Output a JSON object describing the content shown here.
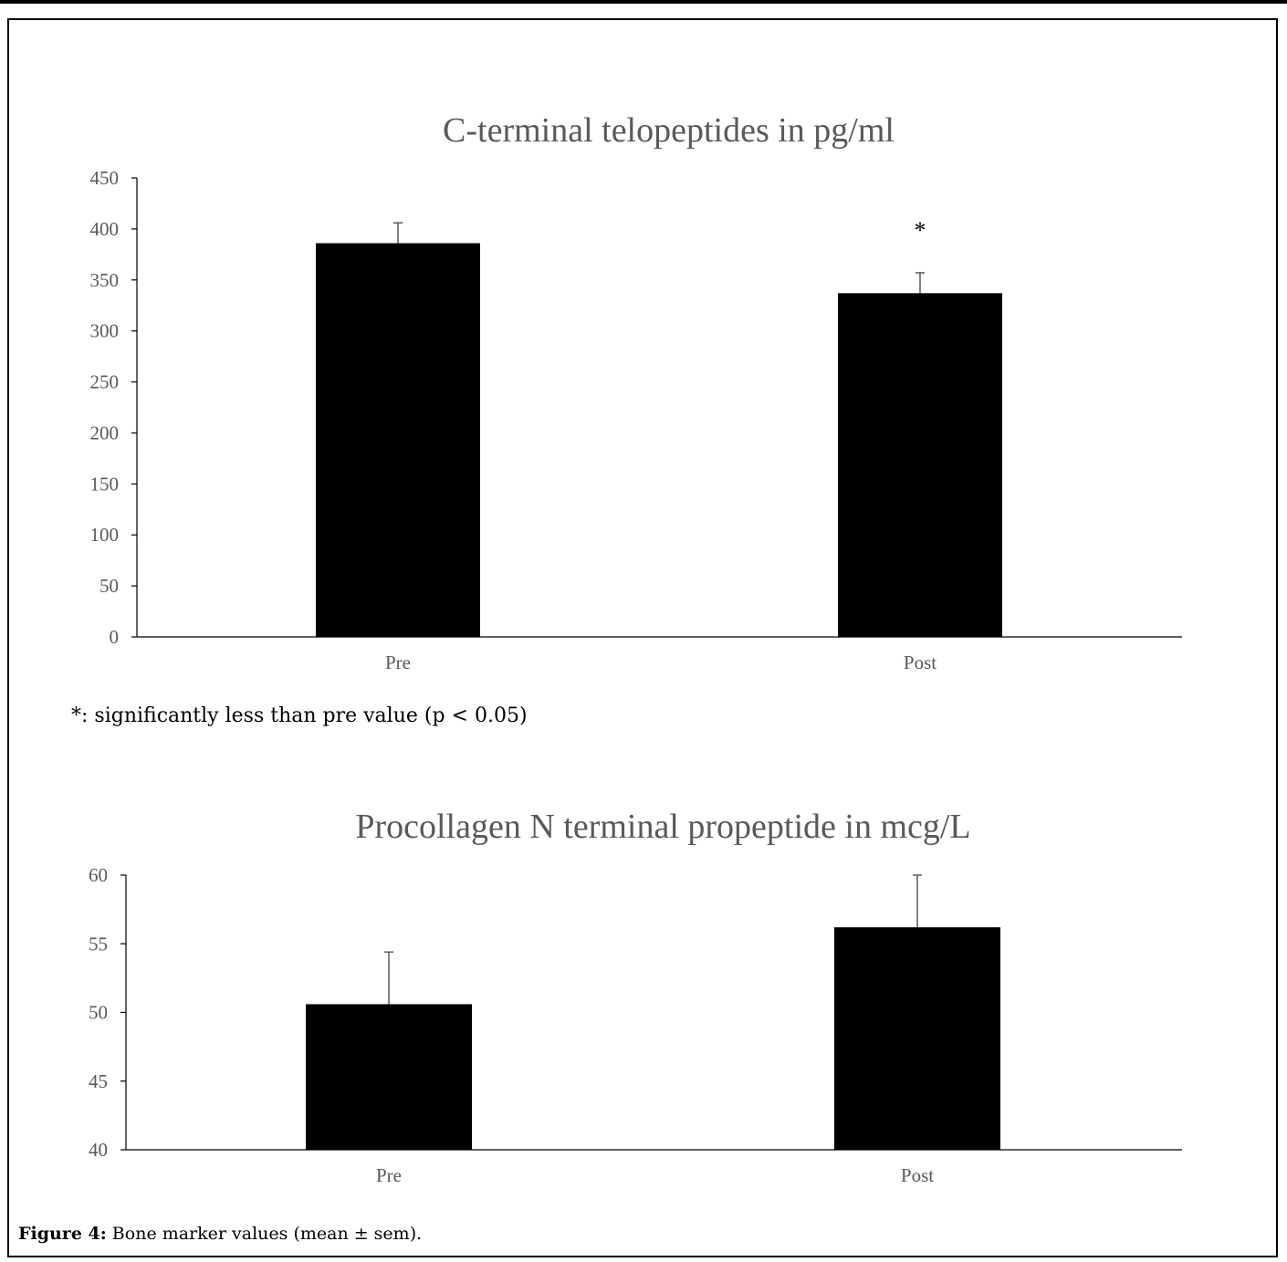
{
  "chart_data": [
    {
      "type": "bar",
      "title": "C-terminal telopeptides in pg/ml",
      "categories": [
        "Pre",
        "Post"
      ],
      "values": [
        386,
        337
      ],
      "errors": [
        20,
        20
      ],
      "annotations": [
        "",
        "*"
      ],
      "ylim": [
        0,
        450
      ],
      "yticks": [
        0,
        50,
        100,
        150,
        200,
        250,
        300,
        350,
        400,
        450
      ],
      "bar_color": "#000000",
      "grid": false
    },
    {
      "type": "bar",
      "title": "Procollagen N terminal propeptide in mcg/L",
      "categories": [
        "Pre",
        "Post"
      ],
      "values": [
        50.6,
        56.2
      ],
      "errors": [
        3.8,
        3.8
      ],
      "annotations": [
        "",
        ""
      ],
      "ylim": [
        40,
        60
      ],
      "yticks": [
        40,
        45,
        50,
        55,
        60
      ],
      "bar_color": "#000000",
      "grid": false
    }
  ],
  "note": "*: significantly less than pre value (p < 0.05)",
  "caption": {
    "label": "Figure 4:",
    "text": " Bone marker values (mean ± sem)."
  }
}
